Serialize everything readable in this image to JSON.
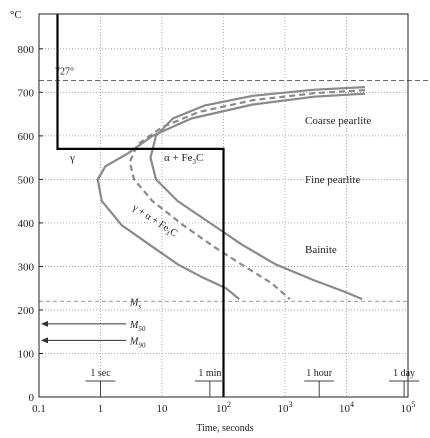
{
  "chart_data": {
    "type": "line",
    "title": "",
    "xlabel": "Time, seconds",
    "ylabel": "",
    "y_unit": "°C",
    "xscale": "log",
    "xlim": [
      0.1,
      100000
    ],
    "ylim": [
      0,
      880
    ],
    "grid": true,
    "x_ticks": [
      "0.1",
      "1",
      "10",
      "10²",
      "10³",
      "10⁴",
      "10⁵"
    ],
    "x_tick_values": [
      0.1,
      1,
      10,
      100,
      1000,
      10000,
      100000
    ],
    "y_ticks": [
      "0",
      "100",
      "200",
      "300",
      "400",
      "500",
      "600",
      "700",
      "800"
    ],
    "y_tick_values": [
      0,
      100,
      200,
      300,
      400,
      500,
      600,
      700,
      800
    ],
    "time_markers": [
      {
        "label": "1 sec",
        "x": 1
      },
      {
        "label": "1 min",
        "x": 60
      },
      {
        "label": "1 hour",
        "x": 3600
      },
      {
        "label": "1 day",
        "x": 86400
      }
    ],
    "reference_lines": [
      {
        "label": "727°",
        "y": 727,
        "style": "dashed"
      },
      {
        "label": "M_s",
        "y": 220,
        "style": "dashed"
      }
    ],
    "arrows": [
      {
        "label": "M_50",
        "y": 168
      },
      {
        "label": "M_90",
        "y": 130
      }
    ],
    "regions": [
      {
        "label": "Coarse pearlite"
      },
      {
        "label": "Fine pearlite"
      },
      {
        "label": "Bainite"
      },
      {
        "label": "γ"
      },
      {
        "label": "α + Fe₃C"
      },
      {
        "label": "γ + α + Fe₃C"
      }
    ],
    "series": [
      {
        "style": "solid",
        "x": [
          20000,
          3000,
          300,
          30,
          7,
          2.8,
          1.2,
          0.9,
          1.05,
          2.2,
          7,
          18,
          45,
          110,
          180
        ],
        "y": [
          697,
          690,
          672,
          640,
          600,
          560,
          530,
          500,
          450,
          395,
          345,
          305,
          275,
          250,
          225
        ]
      },
      {
        "style": "dashed",
        "x": [
          20000,
          3000,
          300,
          40,
          10,
          4,
          3,
          3.5,
          7,
          22,
          70,
          220,
          600,
          1200
        ],
        "y": [
          705,
          698,
          682,
          655,
          620,
          580,
          540,
          500,
          450,
          395,
          345,
          300,
          262,
          225
        ]
      },
      {
        "style": "solid",
        "x": [
          20000,
          3000,
          300,
          50,
          15,
          8,
          6.5,
          8,
          18,
          60,
          200,
          700,
          3000,
          10000,
          18000
        ],
        "y": [
          712,
          706,
          692,
          670,
          640,
          600,
          550,
          500,
          450,
          400,
          350,
          305,
          268,
          240,
          225
        ]
      },
      {
        "style": "cooling-path",
        "x": [
          0.2,
          0.2,
          100,
          100
        ],
        "y": [
          880,
          570,
          570,
          0
        ]
      }
    ]
  }
}
